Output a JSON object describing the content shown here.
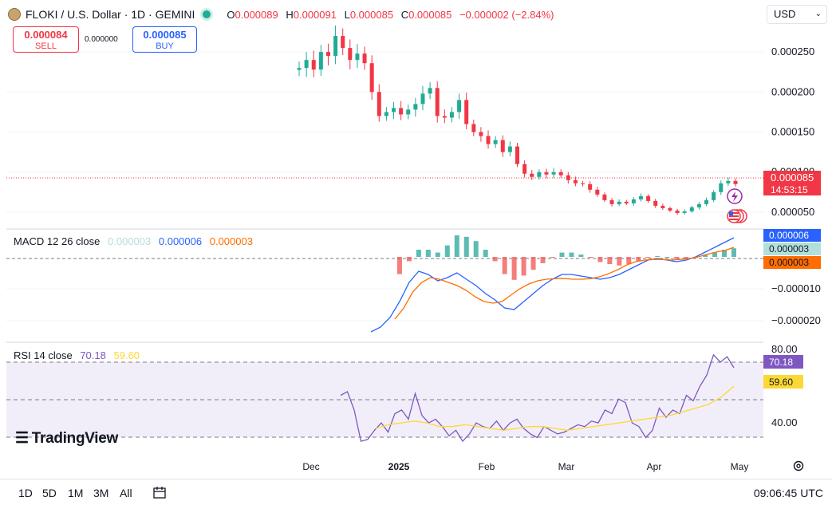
{
  "header": {
    "symbol_title": "FLOKI / U.S. Dollar · 1D · GEMINI",
    "ohlc": [
      {
        "key": "O",
        "value": "0.000089"
      },
      {
        "key": "H",
        "value": "0.000091"
      },
      {
        "key": "L",
        "value": "0.000085"
      },
      {
        "key": "C",
        "value": "0.000085"
      }
    ],
    "change": "−0.000002 (−2.84%)"
  },
  "trade": {
    "sell_price": "0.000084",
    "sell_label": "SELL",
    "spread": "0.000000",
    "buy_price": "0.000085",
    "buy_label": "BUY"
  },
  "currency_select": "USD",
  "macd_legend": {
    "name": "MACD 12 26 close",
    "hist": "0.000003",
    "macd": "0.000006",
    "signal": "0.000003"
  },
  "rsi_legend": {
    "name": "RSI 14 close",
    "rsi": "70.18",
    "ma": "59.60"
  },
  "price_badge": {
    "value": "0.000085",
    "countdown": "14:53:15"
  },
  "brand": "TradingView",
  "bottom_bar": {
    "timeframes": [
      "1D",
      "5D",
      "1M",
      "3M",
      "All"
    ],
    "clock": "09:06:45 UTC"
  },
  "colors": {
    "up": "#22ab94",
    "down": "#f23645",
    "macd": "#2962ff",
    "signal": "#ff6d00",
    "rsi": "#7e57c2",
    "rsi_ma": "#fdd835"
  },
  "chart_data": [
    {
      "type": "candlestick",
      "title": "FLOKI / U.S. Dollar · 1D · GEMINI",
      "x_ticks": [
        "Dec",
        "2025",
        "Feb",
        "Mar",
        "Apr",
        "May"
      ],
      "y_ticks": [
        "0.000250",
        "0.000200",
        "0.000150",
        "0.000100",
        "0.000050"
      ],
      "ylim": [
        3e-05,
        0.000285
      ],
      "last_price": 8.5e-05,
      "close_series": [
        0.00023,
        0.00024,
        0.000228,
        0.00025,
        0.000245,
        0.00027,
        0.000255,
        0.00024,
        0.000248,
        0.000236,
        0.0002,
        0.00017,
        0.000175,
        0.00018,
        0.000172,
        0.000178,
        0.000185,
        0.000198,
        0.000205,
        0.00017,
        0.000168,
        0.000175,
        0.00019,
        0.00016,
        0.00015,
        0.000145,
        0.000135,
        0.00014,
        0.000125,
        0.000132,
        0.00011,
        9.8e-05,
        9.4e-05,
        0.0001,
        9.7e-05,
        0.0001,
        9.6e-05,
        9e-05,
        8.6e-05,
        8.5e-05,
        7.8e-05,
        7.2e-05,
        6.5e-05,
        6e-05,
        6.3e-05,
        6.1e-05,
        6.6e-05,
        7e-05,
        6.4e-05,
        5.8e-05,
        5.5e-05,
        5.2e-05,
        4.9e-05,
        5.1e-05,
        5.6e-05,
        6e-05,
        6.5e-05,
        7.5e-05,
        8.6e-05,
        8.9e-05,
        8.5e-05
      ]
    },
    {
      "type": "line",
      "title": "MACD 12 26 close",
      "y_ticks": [
        "−0.000010",
        "−0.000020"
      ],
      "ylim": [
        -2.6e-05,
        8e-06
      ],
      "series": [
        {
          "name": "MACD",
          "values": [
            -2.35e-05,
            -2.2e-05,
            -1.9e-05,
            -1.4e-05,
            -8e-06,
            -4.5e-06,
            -5.5e-06,
            -7.5e-06,
            -6.5e-06,
            -5e-06,
            -7e-06,
            -9e-06,
            -1.15e-05,
            -1.35e-05,
            -1.6e-05,
            -1.65e-05,
            -1.4e-05,
            -1.15e-05,
            -9e-06,
            -7e-06,
            -5.5e-06,
            -5.5e-06,
            -6e-06,
            -6.5e-06,
            -7e-06,
            -6.5e-06,
            -5.5e-06,
            -4e-06,
            -2.5e-06,
            -1e-06,
            -5e-07,
            -1e-06,
            -1.5e-06,
            -1e-06,
            0.0,
            1.5e-06,
            3e-06,
            4.5e-06,
            6e-06
          ]
        },
        {
          "name": "Signal",
          "values": [
            -1.95e-05,
            -1.6e-05,
            -1.1e-05,
            -8e-06,
            -6.5e-06,
            -7e-06,
            -8e-06,
            -9e-06,
            -1.05e-05,
            -1.25e-05,
            -1.4e-05,
            -1.45e-05,
            -1.4e-05,
            -1.2e-05,
            -1e-05,
            -8.5e-06,
            -7.5e-06,
            -7e-06,
            -6.8e-06,
            -6.8e-06,
            -7e-06,
            -7e-06,
            -6.8e-06,
            -6.2e-06,
            -5.2e-06,
            -4e-06,
            -2.5e-06,
            -1.5e-06,
            -1e-06,
            -8e-07,
            -8e-07,
            -1e-06,
            -8e-07,
            -5e-07,
            0.0,
            8e-07,
            1.5e-06,
            2e-06,
            3e-06
          ]
        }
      ]
    },
    {
      "type": "line",
      "title": "RSI 14 close",
      "y_ticks": [
        "80.00",
        "40.00"
      ],
      "ylim": [
        27,
        83
      ],
      "series": [
        {
          "name": "RSI",
          "values": [
            55,
            57,
            47,
            30,
            31,
            36,
            40,
            35,
            45,
            47,
            42,
            56,
            44,
            40,
            42,
            38,
            33,
            36,
            30,
            34,
            40,
            38,
            37,
            41,
            36,
            40,
            42,
            37,
            34,
            32,
            38,
            36,
            34,
            35,
            37,
            39,
            38,
            41,
            40,
            47,
            45,
            53,
            51,
            40,
            38,
            32,
            36,
            48,
            43,
            47,
            45,
            55,
            52,
            60,
            66,
            77,
            73,
            76,
            70
          ]
        },
        {
          "name": "RSI MA",
          "values": [
            37,
            39,
            40,
            41,
            40,
            38,
            38,
            39,
            38,
            37,
            36,
            37,
            38,
            38,
            37,
            36,
            37,
            38,
            39,
            40,
            41,
            42,
            43,
            44,
            46,
            48,
            50,
            54,
            60
          ]
        }
      ]
    }
  ]
}
